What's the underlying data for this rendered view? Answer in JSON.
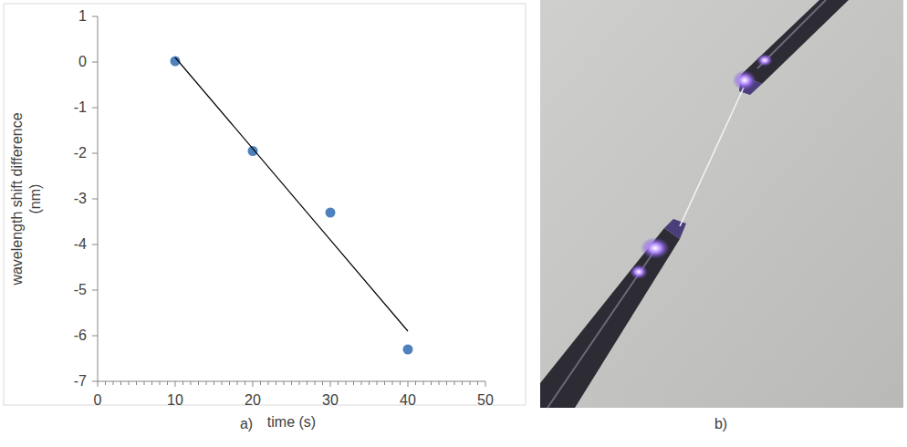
{
  "chart_data": {
    "type": "scatter",
    "xlabel": "time (s)",
    "ylabel": [
      "wavelength shift difference",
      "(nm)"
    ],
    "panel_label": "a)",
    "xlim": [
      0,
      50
    ],
    "xticks": [
      0,
      10,
      20,
      30,
      40,
      50
    ],
    "ylim": [
      -7,
      1
    ],
    "yticks": [
      -7,
      -6,
      -5,
      -4,
      -3,
      -2,
      -1,
      0,
      1
    ],
    "grid": false,
    "series": [
      {
        "type": "scatter",
        "color": "#4f81bd",
        "marker": "circle",
        "x": [
          10,
          20,
          30,
          40
        ],
        "values": [
          0.02,
          -1.95,
          -3.3,
          -6.3
        ]
      },
      {
        "type": "line",
        "color": "#000000",
        "line_style": "solid",
        "x": [
          10,
          40
        ],
        "values": [
          0.1,
          -5.9
        ]
      }
    ]
  },
  "photo": {
    "panel_label": "b)"
  }
}
